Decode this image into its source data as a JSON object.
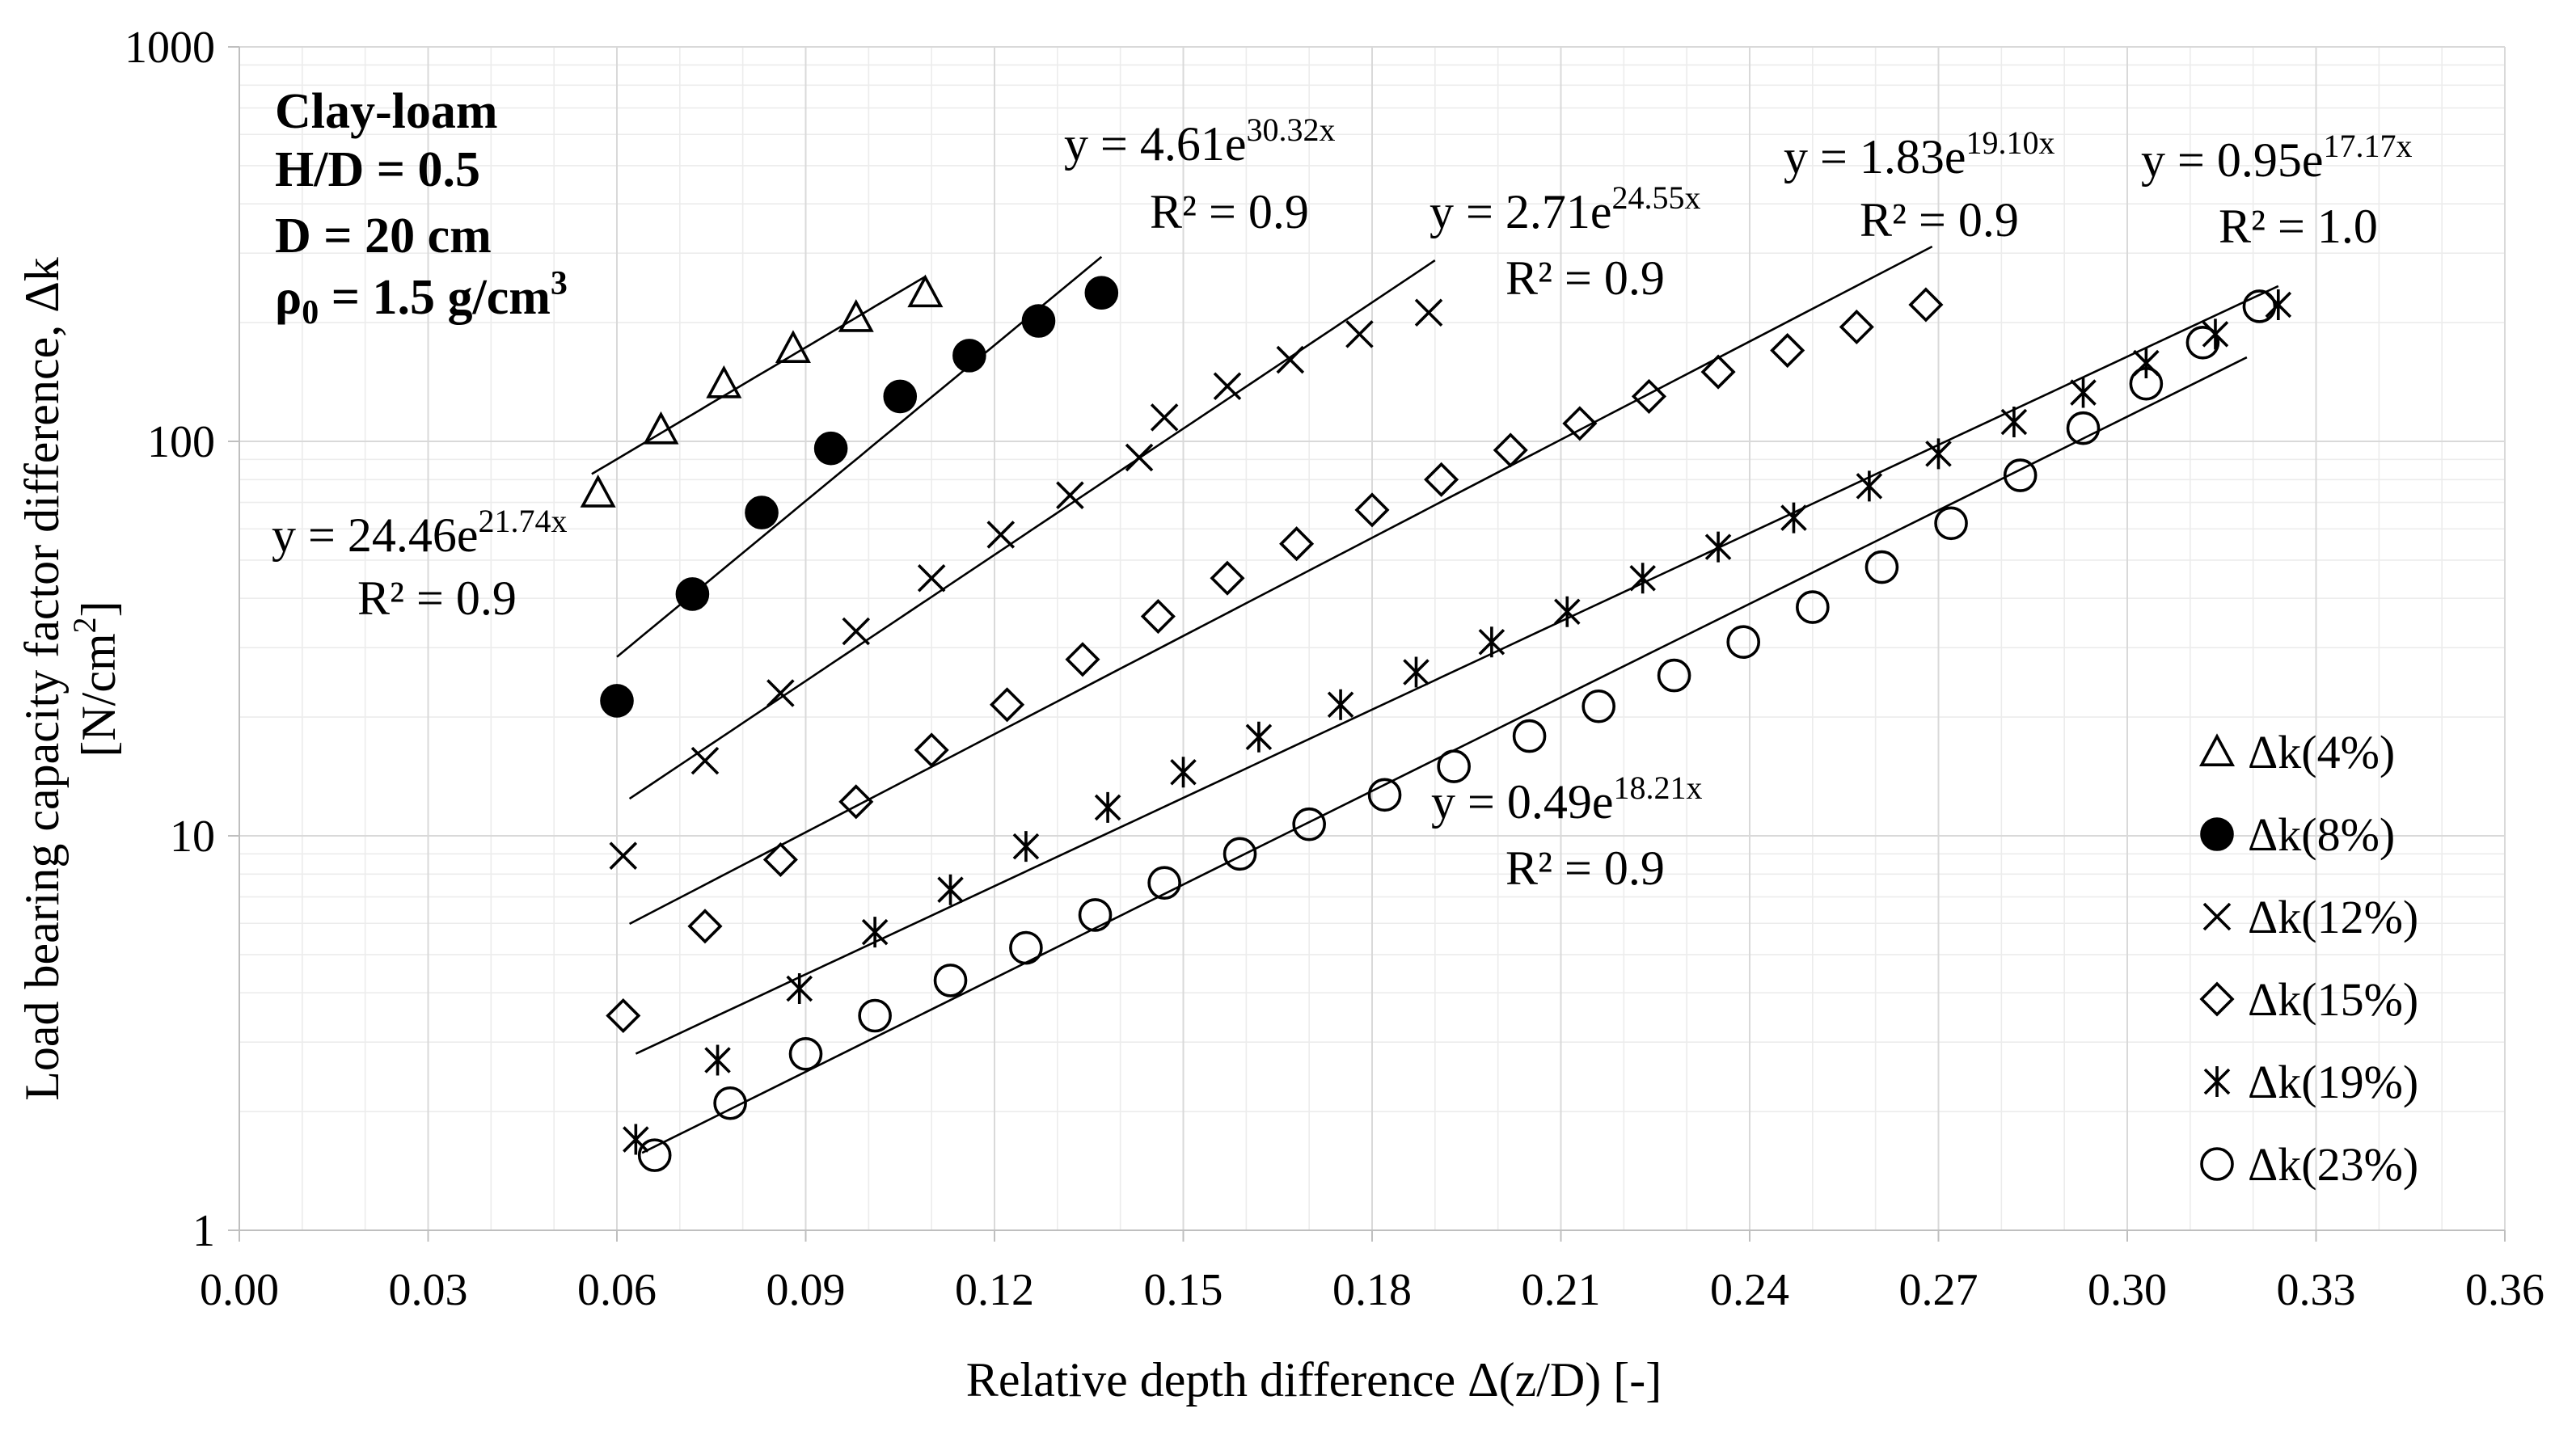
{
  "chart_data": {
    "type": "scatter",
    "xlabel": "Relative depth difference Δ(z/D) [-]",
    "ylabel": "Load bearing capacity factor difference, Δk",
    "ylabel_unit": "[N/cm²]",
    "yscale": "log",
    "xlim": [
      0.0,
      0.36
    ],
    "ylim": [
      1,
      1000
    ],
    "x_ticks": [
      "0.00",
      "0.03",
      "0.06",
      "0.09",
      "0.12",
      "0.15",
      "0.18",
      "0.21",
      "0.24",
      "0.27",
      "0.30",
      "0.33",
      "0.36"
    ],
    "y_ticks": [
      "1",
      "10",
      "100",
      "1000"
    ],
    "grid": true,
    "legend_position": "bottom-right",
    "info_box": [
      "Clay-loam",
      "H/D = 0.5",
      "D = 20 cm",
      "ρ0 = 1.5 g/cm3"
    ],
    "series": [
      {
        "name": "Δk(4%)",
        "marker": "triangle",
        "x": [
          0.057,
          0.067,
          0.077,
          0.088,
          0.098,
          0.109
        ],
        "y": [
          74,
          107,
          140,
          172,
          206,
          238
        ],
        "fit": {
          "a": 24.46,
          "b": 21.74,
          "equation": "y = 24.46e",
          "exponent": "21.74x",
          "r2": "R² = 0.9",
          "x_range": [
            0.056,
            0.109
          ]
        }
      },
      {
        "name": "Δk(8%)",
        "marker": "filled-circle",
        "x": [
          0.06,
          0.072,
          0.083,
          0.094,
          0.105,
          0.116,
          0.127,
          0.137
        ],
        "y": [
          22,
          41,
          66,
          96,
          130,
          165,
          202,
          238
        ],
        "fit": {
          "a": 4.61,
          "b": 30.32,
          "equation": "y = 4.61e",
          "exponent": "30.32x",
          "r2": "R² = 0.9",
          "x_range": [
            0.06,
            0.137
          ]
        }
      },
      {
        "name": "Δk(12%)",
        "marker": "x",
        "x": [
          0.061,
          0.074,
          0.086,
          0.098,
          0.11,
          0.121,
          0.132,
          0.143,
          0.147,
          0.157,
          0.167,
          0.178,
          0.189
        ],
        "y": [
          8.9,
          15.5,
          23,
          33,
          45,
          58,
          73,
          91,
          115,
          138,
          161,
          187,
          212
        ],
        "fit": {
          "a": 2.71,
          "b": 24.55,
          "equation": "y = 2.71e",
          "exponent": "24.55x",
          "r2": "R² = 0.9",
          "x_range": [
            0.062,
            0.19
          ]
        }
      },
      {
        "name": "Δk(15%)",
        "marker": "diamond",
        "x": [
          0.061,
          0.074,
          0.086,
          0.098,
          0.11,
          0.122,
          0.134,
          0.146,
          0.157,
          0.168,
          0.18,
          0.191,
          0.202,
          0.213,
          0.224,
          0.235,
          0.246,
          0.257,
          0.268
        ],
        "y": [
          3.5,
          5.9,
          8.7,
          12.2,
          16.5,
          21.5,
          28,
          36,
          45,
          55,
          67,
          80,
          95,
          111,
          130,
          150,
          170,
          195,
          222
        ],
        "fit": {
          "a": 1.83,
          "b": 19.1,
          "equation": "y = 1.83e",
          "exponent": "19.10x",
          "r2": "R² = 0.9",
          "x_range": [
            0.062,
            0.269
          ]
        }
      },
      {
        "name": "Δk(19%)",
        "marker": "asterisk",
        "x": [
          0.063,
          0.076,
          0.089,
          0.101,
          0.113,
          0.125,
          0.138,
          0.15,
          0.162,
          0.175,
          0.187,
          0.199,
          0.211,
          0.223,
          0.235,
          0.247,
          0.259,
          0.27,
          0.282,
          0.293,
          0.303,
          0.314,
          0.324
        ],
        "y": [
          1.7,
          2.7,
          4.1,
          5.7,
          7.3,
          9.4,
          11.8,
          14.5,
          17.8,
          21.5,
          26,
          31,
          37,
          45,
          54,
          64,
          77,
          93,
          112,
          133,
          158,
          187,
          222
        ],
        "fit": {
          "a": 0.95,
          "b": 17.17,
          "equation": "y = 0.95e",
          "exponent": "17.17x",
          "r2": "R² = 1.0",
          "x_range": [
            0.063,
            0.324
          ]
        }
      },
      {
        "name": "Δk(23%)",
        "marker": "circle",
        "x": [
          0.066,
          0.078,
          0.09,
          0.101,
          0.113,
          0.125,
          0.136,
          0.147,
          0.159,
          0.17,
          0.182,
          0.193,
          0.205,
          0.216,
          0.228,
          0.239,
          0.25,
          0.261,
          0.272,
          0.283,
          0.293,
          0.303,
          0.312,
          0.321
        ],
        "y": [
          1.55,
          2.1,
          2.8,
          3.5,
          4.3,
          5.2,
          6.3,
          7.6,
          9.0,
          10.7,
          12.7,
          15.0,
          17.9,
          21.3,
          25.5,
          31,
          38,
          48,
          62,
          82,
          108,
          140,
          178,
          220
        ],
        "fit": {
          "a": 0.49,
          "b": 18.21,
          "equation": "y = 0.49e",
          "exponent": "18.21x",
          "r2": "R² = 0.9",
          "x_range": [
            0.064,
            0.319
          ]
        }
      }
    ]
  }
}
